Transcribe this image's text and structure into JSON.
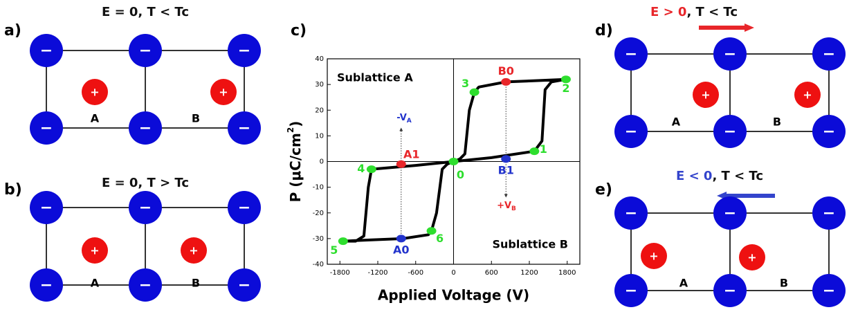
{
  "ion_signs": {
    "anion": "−",
    "cation": "+"
  },
  "panels": [
    {
      "tag": "a)",
      "title_parts": [
        "E = 0, T < Tc"
      ],
      "site_labels": [
        "A",
        "B"
      ]
    },
    {
      "tag": "b)",
      "title_parts": [
        "E = 0, T > Tc"
      ],
      "site_labels": [
        "A",
        "B"
      ]
    },
    {
      "tag": "d)",
      "title_parts": [
        "E > 0",
        ", T < Tc"
      ],
      "site_labels": [
        "A",
        "B"
      ]
    },
    {
      "tag": "e)",
      "title_parts": [
        "E < 0",
        ", T < Tc"
      ],
      "site_labels": [
        "A",
        "B"
      ]
    }
  ],
  "chart_data": {
    "type": "line",
    "tag": "c)",
    "x_label": "Applied Voltage (V)",
    "y_label": {
      "main": "P (μC/cm",
      "sup": "2",
      "end": ")"
    },
    "xlim": [
      -2000,
      2000
    ],
    "ylim": [
      -40,
      40
    ],
    "xticks": [
      -1800,
      -1200,
      -600,
      0,
      600,
      1200,
      1800
    ],
    "yticks": [
      -40,
      -30,
      -20,
      -10,
      0,
      10,
      20,
      30,
      40
    ],
    "series": [
      {
        "color": "#000000",
        "x": [
          0,
          600,
          1280,
          1400,
          1450,
          1550,
          1780,
          1300,
          830,
          400,
          330,
          250,
          180,
          100,
          0,
          -600,
          -1300,
          -1350,
          -1420,
          -1550,
          -1750,
          -1300,
          -800,
          -400,
          -350,
          -270,
          -180,
          -100,
          0
        ],
        "y": [
          0,
          1.5,
          4,
          8,
          28,
          31,
          32,
          31.5,
          31,
          29,
          27,
          20,
          3,
          1,
          0,
          -1.5,
          -3,
          -10,
          -29,
          -31,
          -31,
          -30.5,
          -30,
          -28.5,
          -27,
          -20,
          -3,
          -1,
          0
        ]
      }
    ],
    "points": [
      {
        "label": "0",
        "x": 0,
        "y": 0,
        "color": "#2ede2e"
      },
      {
        "label": "1",
        "x": 1280,
        "y": 4,
        "color": "#2ede2e"
      },
      {
        "label": "2",
        "x": 1780,
        "y": 32,
        "color": "#2ede2e"
      },
      {
        "label": "3",
        "x": 330,
        "y": 27,
        "color": "#2ede2e"
      },
      {
        "label": "4",
        "x": -1300,
        "y": -3,
        "color": "#2ede2e"
      },
      {
        "label": "5",
        "x": -1750,
        "y": -31,
        "color": "#2ede2e"
      },
      {
        "label": "6",
        "x": -350,
        "y": -27,
        "color": "#2ede2e"
      },
      {
        "label": "A1",
        "x": -830,
        "y": -1,
        "color": "#e8262a"
      },
      {
        "label": "B0",
        "x": 830,
        "y": 31,
        "color": "#e8262a"
      },
      {
        "label": "A0",
        "x": -830,
        "y": -30,
        "color": "#2233cc"
      },
      {
        "label": "B1",
        "x": 830,
        "y": 1,
        "color": "#2233cc"
      }
    ],
    "region_labels": [
      "Sublattice A",
      "Sublattice B"
    ],
    "voltage_labels": [
      {
        "text": "-V",
        "sub": "A",
        "color": "#2233cc"
      },
      {
        "text": "+V",
        "sub": "B",
        "color": "#e8262a"
      }
    ]
  }
}
